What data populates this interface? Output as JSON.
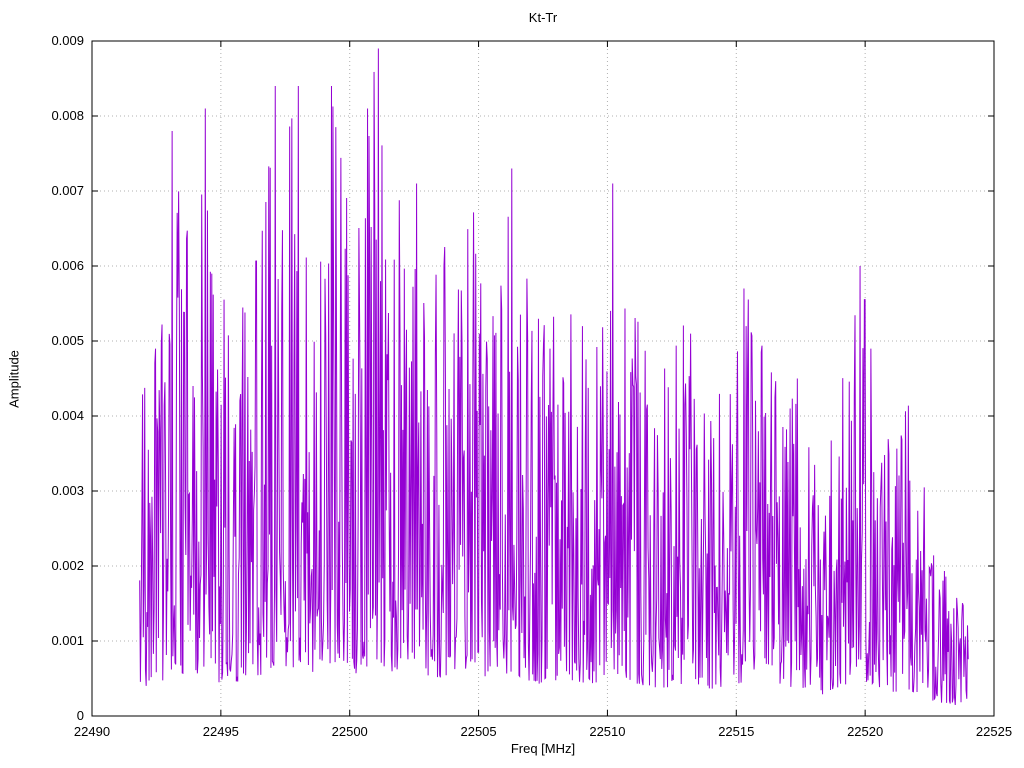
{
  "chart_data": {
    "type": "line",
    "title": "Kt-Tr",
    "xlabel": "Freq [MHz]",
    "ylabel": "Amplitude",
    "xlim": [
      22490,
      22525
    ],
    "ylim": [
      0,
      0.009
    ],
    "xticks": [
      22490,
      22495,
      22500,
      22505,
      22510,
      22515,
      22520,
      22525
    ],
    "xtick_labels": [
      "22490",
      "22495",
      "22500",
      "22505",
      "22510",
      "22515",
      "22520",
      "22525"
    ],
    "yticks": [
      0,
      0.001,
      0.002,
      0.003,
      0.004,
      0.005,
      0.006,
      0.007,
      0.008,
      0.009
    ],
    "ytick_labels": [
      "0",
      "0.001",
      "0.002",
      "0.003",
      "0.004",
      "0.005",
      "0.006",
      "0.007",
      "0.008",
      "0.009"
    ],
    "grid": true,
    "grid_style": "dotted",
    "grid_color": "#b0b0b0",
    "legend": "none",
    "line_color": "#9400d3",
    "background_color": "#ffffff",
    "series": [
      {
        "name": "Kt-Tr",
        "description": "dense noisy amplitude spectrum; values synthesized from peak envelope read off the plot",
        "x_start": 22491.85,
        "x_end": 22524.0,
        "n_points": 1150,
        "seed": 42,
        "floor_fraction": 0.08,
        "shape_exponent": 1.9,
        "guaranteed_peaks": [
          [
            22493.1,
            0.0078
          ],
          [
            22494.4,
            0.0081
          ],
          [
            22497.1,
            0.0084
          ],
          [
            22498.0,
            0.0084
          ],
          [
            22499.3,
            0.0084
          ],
          [
            22500.7,
            0.0081
          ],
          [
            22501.1,
            0.0089
          ],
          [
            22502.6,
            0.0071
          ],
          [
            22506.3,
            0.0073
          ],
          [
            22510.2,
            0.0071
          ],
          [
            22515.3,
            0.0057
          ],
          [
            22519.8,
            0.006
          ]
        ],
        "peak_envelope": [
          [
            22491.85,
            0.0042
          ],
          [
            22492.3,
            0.0048
          ],
          [
            22492.8,
            0.006
          ],
          [
            22493.1,
            0.0078
          ],
          [
            22493.6,
            0.007
          ],
          [
            22494.0,
            0.006
          ],
          [
            22494.4,
            0.0081
          ],
          [
            22494.9,
            0.0056
          ],
          [
            22495.5,
            0.0056
          ],
          [
            22496.1,
            0.0061
          ],
          [
            22496.6,
            0.0066
          ],
          [
            22497.1,
            0.0084
          ],
          [
            22497.6,
            0.0078
          ],
          [
            22498.0,
            0.0084
          ],
          [
            22498.5,
            0.0066
          ],
          [
            22499.0,
            0.008
          ],
          [
            22499.3,
            0.0084
          ],
          [
            22499.8,
            0.0072
          ],
          [
            22500.3,
            0.0065
          ],
          [
            22500.7,
            0.0081
          ],
          [
            22501.1,
            0.0089
          ],
          [
            22501.5,
            0.0072
          ],
          [
            22502.0,
            0.0069
          ],
          [
            22502.6,
            0.0071
          ],
          [
            22503.2,
            0.006
          ],
          [
            22503.8,
            0.0068
          ],
          [
            22504.3,
            0.0062
          ],
          [
            22504.8,
            0.0068
          ],
          [
            22505.3,
            0.0065
          ],
          [
            22505.8,
            0.006
          ],
          [
            22506.3,
            0.0073
          ],
          [
            22506.8,
            0.0061
          ],
          [
            22507.4,
            0.0053
          ],
          [
            22508.0,
            0.0058
          ],
          [
            22508.6,
            0.0055
          ],
          [
            22509.2,
            0.0053
          ],
          [
            22509.8,
            0.0057
          ],
          [
            22510.2,
            0.0071
          ],
          [
            22510.6,
            0.0064
          ],
          [
            22511.2,
            0.0053
          ],
          [
            22511.8,
            0.0048
          ],
          [
            22512.4,
            0.0047
          ],
          [
            22513.0,
            0.0053
          ],
          [
            22513.6,
            0.0049
          ],
          [
            22514.2,
            0.0044
          ],
          [
            22514.8,
            0.005
          ],
          [
            22515.3,
            0.0057
          ],
          [
            22515.9,
            0.0053
          ],
          [
            22516.5,
            0.0049
          ],
          [
            22517.1,
            0.0047
          ],
          [
            22517.7,
            0.0043
          ],
          [
            22518.3,
            0.0035
          ],
          [
            22518.9,
            0.0047
          ],
          [
            22519.4,
            0.0055
          ],
          [
            22519.8,
            0.006
          ],
          [
            22520.2,
            0.0055
          ],
          [
            22520.7,
            0.0045
          ],
          [
            22521.2,
            0.0039
          ],
          [
            22521.7,
            0.0043
          ],
          [
            22522.2,
            0.0035
          ],
          [
            22522.7,
            0.0023
          ],
          [
            22523.2,
            0.002
          ],
          [
            22523.7,
            0.0017
          ],
          [
            22524.0,
            0.0015
          ]
        ]
      }
    ]
  }
}
